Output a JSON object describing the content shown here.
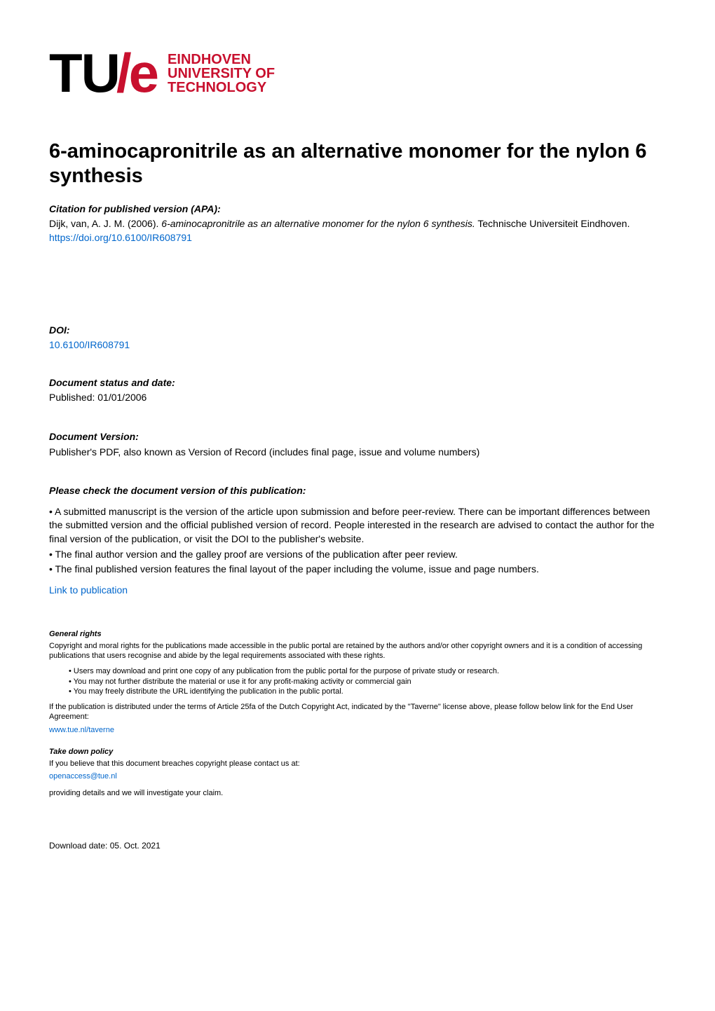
{
  "logo": {
    "tu": "TU",
    "slash": "/",
    "e": "e",
    "line1": "EINDHOVEN",
    "line2": "UNIVERSITY OF",
    "line3": "TECHNOLOGY",
    "brand_color": "#c8102e"
  },
  "title": "6-aminocapronitrile as an alternative monomer for the nylon 6 synthesis",
  "citation": {
    "heading": "Citation for published version (APA):",
    "author": "Dijk, van, A. J. M. (2006). ",
    "work_title": "6-aminocapronitrile as an alternative monomer for the nylon 6 synthesis.",
    "publisher": " Technische Universiteit Eindhoven. ",
    "doi_url": "https://doi.org/10.6100/IR608791"
  },
  "doi": {
    "heading": "DOI:",
    "value": "10.6100/IR608791"
  },
  "status": {
    "heading": "Document status and date:",
    "value": "Published: 01/01/2006"
  },
  "version": {
    "heading": "Document Version:",
    "value": "Publisher's PDF, also known as Version of Record (includes final page, issue and volume numbers)"
  },
  "check": {
    "heading": "Please check the document version of this publication:",
    "para1": "• A submitted manuscript is the version of the article upon submission and before peer-review. There can be important differences between the submitted version and the official published version of record. People interested in the research are advised to contact the author for the final version of the publication, or visit the DOI to the publisher's website.",
    "para2": "• The final author version and the galley proof are versions of the publication after peer review.",
    "para3": "• The final published version features the final layout of the paper including the volume, issue and page numbers."
  },
  "link_label": "Link to publication",
  "rights": {
    "heading": "General rights",
    "para": "Copyright and moral rights for the publications made accessible in the public portal are retained by the authors and/or other copyright owners and it is a condition of accessing publications that users recognise and abide by the legal requirements associated with these rights.",
    "b1": "• Users may download and print one copy of any publication from the public portal for the purpose of private study or research.",
    "b2": "• You may not further distribute the material or use it for any profit-making activity or commercial gain",
    "b3": "• You may freely distribute the URL identifying the publication in the public portal.",
    "taverne": "If the publication is distributed under the terms of Article 25fa of the Dutch Copyright Act, indicated by the \"Taverne\" license above, please follow below link for the End User Agreement:",
    "taverne_url": "www.tue.nl/taverne"
  },
  "takedown": {
    "heading": "Take down policy",
    "line1": "If you believe that this document breaches copyright please contact us at:",
    "email": "openaccess@tue.nl",
    "line2": "providing details and we will investigate your claim."
  },
  "footer": "Download date: 05. Oct. 2021"
}
